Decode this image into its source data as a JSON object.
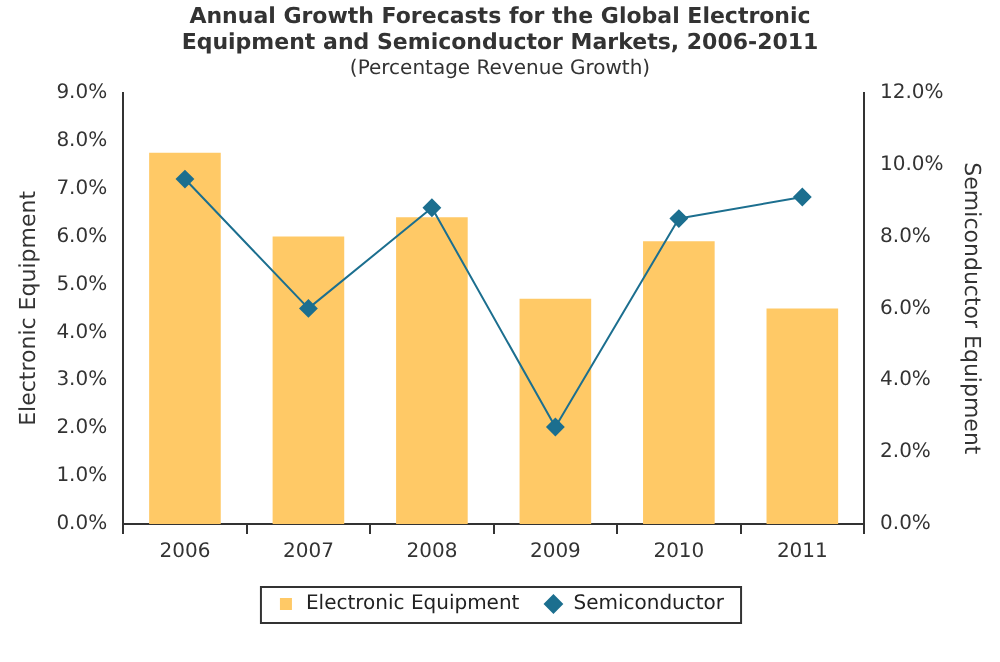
{
  "chart_data": {
    "type": "bar",
    "title": "Annual Growth Forecasts for the Global Electronic Equipment and Semiconductor Markets, 2006-2011",
    "subtitle": "(Percentage Revenue Growth)",
    "ylabel": "Electronic Equipment",
    "y2label": "Semiconductor Equipment",
    "categories": [
      "2006",
      "2007",
      "2008",
      "2009",
      "2010",
      "2011"
    ],
    "series": [
      {
        "name": "Electronic Equipment",
        "color": "#ffc966",
        "values": [
          7.75,
          6.0,
          6.4,
          4.7,
          5.9,
          4.5
        ]
      },
      {
        "name": "Semiconductor",
        "type": "line",
        "axis": "y2",
        "color": "#1c6f8f",
        "marker": "diamond",
        "values": [
          9.6,
          6.0,
          8.8,
          2.7,
          8.5,
          9.1
        ]
      }
    ],
    "ylim": [
      0,
      9
    ],
    "yticks": [
      {
        "value": 0,
        "label": "0.0%"
      },
      {
        "value": 1,
        "label": "1.0%"
      },
      {
        "value": 2,
        "label": "2.0%"
      },
      {
        "value": 3,
        "label": "3.0%"
      },
      {
        "value": 4,
        "label": "4.0%"
      },
      {
        "value": 5,
        "label": "5.0%"
      },
      {
        "value": 6,
        "label": "6.0%"
      },
      {
        "value": 7,
        "label": "7.0%"
      },
      {
        "value": 8,
        "label": "8.0%"
      },
      {
        "value": 9,
        "label": "9.0%"
      }
    ],
    "y2lim": [
      0,
      12
    ],
    "y2ticks": [
      {
        "value": 0,
        "label": "0.0%"
      },
      {
        "value": 2,
        "label": "2.0%"
      },
      {
        "value": 4,
        "label": "4.0%"
      },
      {
        "value": 6,
        "label": "6.0%"
      },
      {
        "value": 8,
        "label": "8.0%"
      },
      {
        "value": 10,
        "label": "10.0%"
      },
      {
        "value": 12,
        "label": "12.0%"
      }
    ],
    "grid": false,
    "legend": "bottom"
  }
}
